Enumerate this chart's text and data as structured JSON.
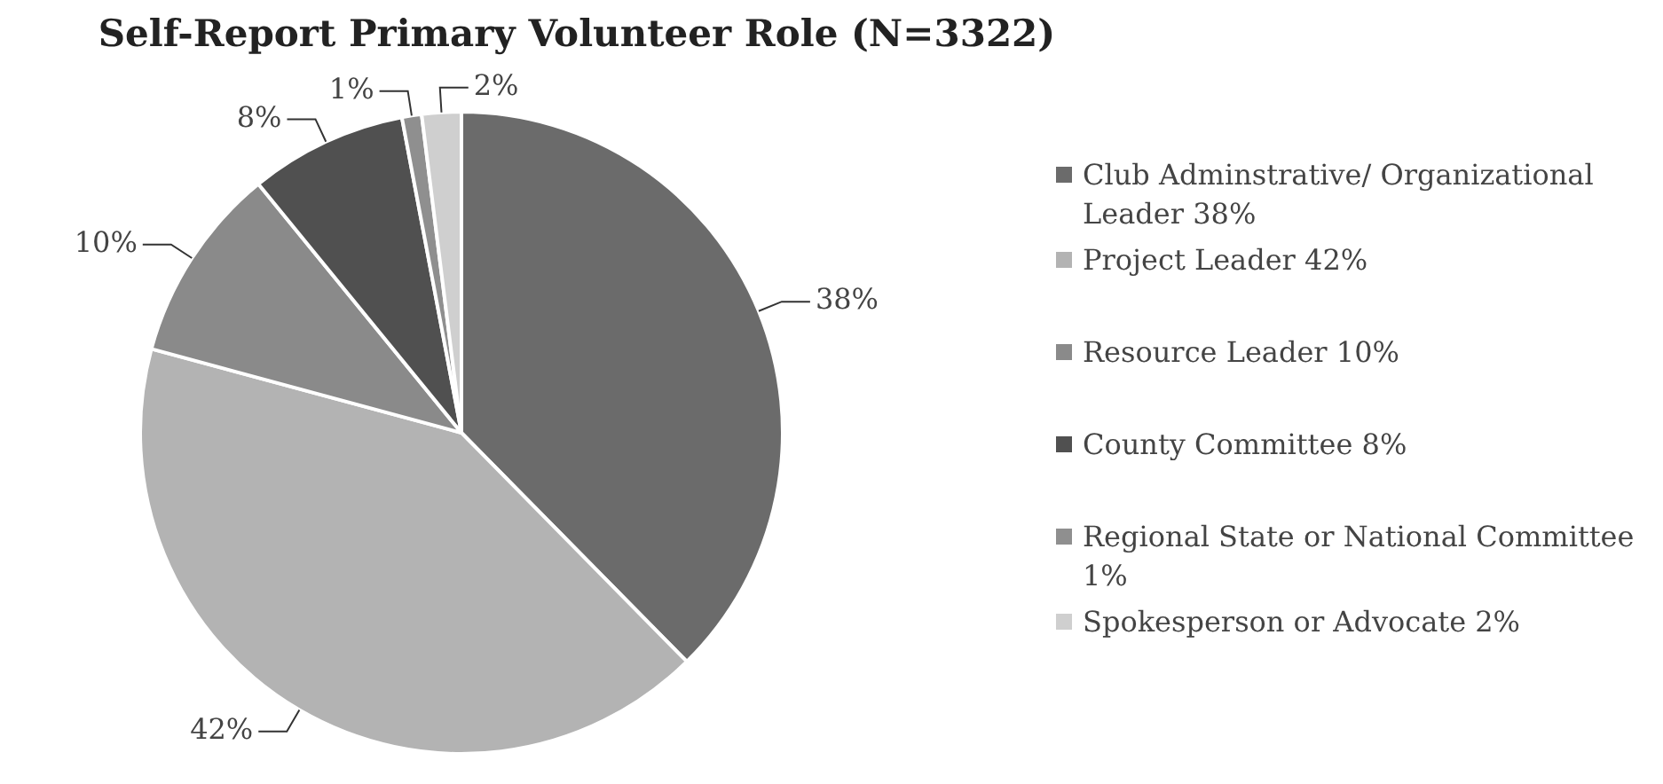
{
  "chart_data": {
    "type": "pie",
    "title": "Self-Report Primary Volunteer Role (N=3322)",
    "categories": [
      "Club Adminstrative/ Organizational Leader  38%",
      "Project Leader 42%",
      "Resource Leader 10%",
      "County Committee 8%",
      "Regional State or National Committee 1%",
      "Spokesperson or Advocate 2%"
    ],
    "values": [
      38,
      42,
      10,
      8,
      1,
      2
    ],
    "colors": [
      "#6b6b6b",
      "#b3b3b3",
      "#8a8a8a",
      "#505050",
      "#8f8f8f",
      "#cfcfcf"
    ],
    "value_labels": [
      "38%",
      "42%",
      "10%",
      "8%",
      "1%",
      "2%"
    ],
    "legend": "right"
  }
}
